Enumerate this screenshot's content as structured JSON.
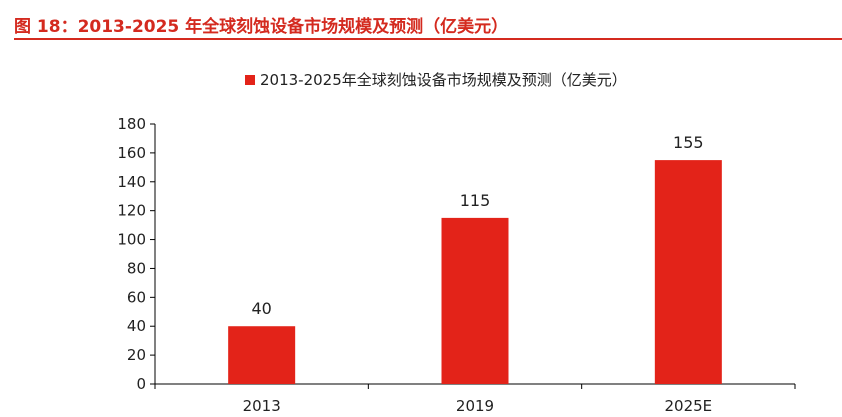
{
  "figure": {
    "caption": "图 18：2013-2025 年全球刻蚀设备市场规模及预测（亿美元）"
  },
  "colors": {
    "accent": "#d42a1f",
    "bar": "#e32319",
    "axis": "#000000",
    "text": "#222222"
  },
  "chart_data": {
    "type": "bar",
    "categories": [
      "2013",
      "2019",
      "2025E"
    ],
    "series": [
      {
        "name": "2013-2025年全球刻蚀设备市场规模及预测（亿美元）",
        "values": [
          40,
          115,
          155
        ]
      }
    ],
    "data_labels": [
      "40",
      "115",
      "155"
    ],
    "yticks": [
      0,
      20,
      40,
      60,
      80,
      100,
      120,
      140,
      160,
      180
    ],
    "ylim": [
      0,
      180
    ],
    "grid": false,
    "legend_position": "top-center",
    "title": "",
    "xlabel": "",
    "ylabel": ""
  }
}
